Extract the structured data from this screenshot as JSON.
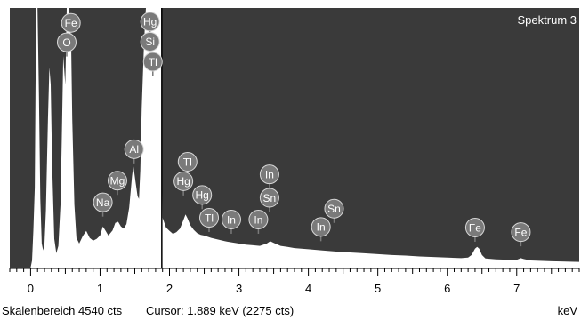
{
  "chart_data": {
    "type": "area",
    "title": "Spektrum 3",
    "xlabel": "keV",
    "xlim": [
      -0.3,
      7.9
    ],
    "ylim": [
      0,
      4540
    ],
    "x_ticks": [
      0,
      1,
      2,
      3,
      4,
      5,
      6,
      7
    ],
    "cursor_kev": 1.889,
    "spectrum": [
      [
        -0.3,
        0
      ],
      [
        0.0,
        0
      ],
      [
        0.02,
        120
      ],
      [
        0.04,
        650
      ],
      [
        0.06,
        1400
      ],
      [
        0.07,
        3100
      ],
      [
        0.08,
        4540
      ],
      [
        0.1,
        4540
      ],
      [
        0.12,
        3000
      ],
      [
        0.14,
        1200
      ],
      [
        0.16,
        420
      ],
      [
        0.18,
        300
      ],
      [
        0.2,
        420
      ],
      [
        0.22,
        1000
      ],
      [
        0.25,
        2600
      ],
      [
        0.27,
        3500
      ],
      [
        0.29,
        3200
      ],
      [
        0.31,
        1800
      ],
      [
        0.34,
        500
      ],
      [
        0.37,
        250
      ],
      [
        0.4,
        380
      ],
      [
        0.43,
        1100
      ],
      [
        0.45,
        2300
      ],
      [
        0.47,
        3700
      ],
      [
        0.5,
        3200
      ],
      [
        0.52,
        4540
      ],
      [
        0.55,
        4540
      ],
      [
        0.58,
        4200
      ],
      [
        0.6,
        2600
      ],
      [
        0.63,
        1100
      ],
      [
        0.66,
        520
      ],
      [
        0.7,
        420
      ],
      [
        0.75,
        550
      ],
      [
        0.8,
        640
      ],
      [
        0.85,
        520
      ],
      [
        0.9,
        470
      ],
      [
        0.95,
        500
      ],
      [
        1.0,
        560
      ],
      [
        1.04,
        720
      ],
      [
        1.08,
        640
      ],
      [
        1.12,
        560
      ],
      [
        1.18,
        650
      ],
      [
        1.22,
        780
      ],
      [
        1.26,
        800
      ],
      [
        1.3,
        720
      ],
      [
        1.34,
        680
      ],
      [
        1.38,
        760
      ],
      [
        1.42,
        1050
      ],
      [
        1.46,
        1600
      ],
      [
        1.48,
        1780
      ],
      [
        1.51,
        1500
      ],
      [
        1.54,
        1250
      ],
      [
        1.56,
        1200
      ],
      [
        1.58,
        1700
      ],
      [
        1.6,
        2800
      ],
      [
        1.63,
        3800
      ],
      [
        1.65,
        4350
      ],
      [
        1.66,
        4540
      ],
      [
        1.85,
        4540
      ],
      [
        1.88,
        4540
      ],
      [
        1.9,
        870
      ],
      [
        1.95,
        700
      ],
      [
        2.0,
        640
      ],
      [
        2.05,
        590
      ],
      [
        2.1,
        620
      ],
      [
        2.15,
        680
      ],
      [
        2.2,
        830
      ],
      [
        2.23,
        930
      ],
      [
        2.26,
        860
      ],
      [
        2.3,
        740
      ],
      [
        2.35,
        660
      ],
      [
        2.4,
        600
      ],
      [
        2.45,
        570
      ],
      [
        2.5,
        560
      ],
      [
        2.6,
        520
      ],
      [
        2.7,
        490
      ],
      [
        2.8,
        460
      ],
      [
        2.9,
        440
      ],
      [
        3.0,
        420
      ],
      [
        3.1,
        400
      ],
      [
        3.2,
        390
      ],
      [
        3.3,
        380
      ],
      [
        3.4,
        420
      ],
      [
        3.45,
        460
      ],
      [
        3.5,
        430
      ],
      [
        3.6,
        380
      ],
      [
        3.7,
        360
      ],
      [
        3.8,
        340
      ],
      [
        3.9,
        330
      ],
      [
        4.0,
        320
      ],
      [
        4.2,
        300
      ],
      [
        4.4,
        280
      ],
      [
        4.6,
        265
      ],
      [
        4.8,
        250
      ],
      [
        5.0,
        235
      ],
      [
        5.2,
        220
      ],
      [
        5.4,
        210
      ],
      [
        5.6,
        195
      ],
      [
        5.8,
        185
      ],
      [
        6.0,
        175
      ],
      [
        6.2,
        165
      ],
      [
        6.3,
        175
      ],
      [
        6.35,
        220
      ],
      [
        6.4,
        330
      ],
      [
        6.43,
        360
      ],
      [
        6.46,
        330
      ],
      [
        6.5,
        220
      ],
      [
        6.55,
        160
      ],
      [
        6.7,
        145
      ],
      [
        6.9,
        135
      ],
      [
        7.0,
        135
      ],
      [
        7.06,
        165
      ],
      [
        7.1,
        150
      ],
      [
        7.2,
        125
      ],
      [
        7.5,
        110
      ],
      [
        7.9,
        100
      ]
    ],
    "annotations": [
      {
        "label": "Fe",
        "x": 0.58,
        "y": 4280
      },
      {
        "label": "O",
        "x": 0.52,
        "y": 3940
      },
      {
        "label": "Hg",
        "x": 1.72,
        "y": 4300
      },
      {
        "label": "Si",
        "x": 1.72,
        "y": 3950
      },
      {
        "label": "Tl",
        "x": 1.76,
        "y": 3600
      },
      {
        "label": "Al",
        "x": 1.49,
        "y": 2070
      },
      {
        "label": "Mg",
        "x": 1.25,
        "y": 1520
      },
      {
        "label": "Na",
        "x": 1.04,
        "y": 1140
      },
      {
        "label": "Tl",
        "x": 2.26,
        "y": 1850
      },
      {
        "label": "Hg",
        "x": 2.2,
        "y": 1510
      },
      {
        "label": "Hg",
        "x": 2.47,
        "y": 1270
      },
      {
        "label": "In",
        "x": 3.44,
        "y": 1630
      },
      {
        "label": "Sn",
        "x": 3.44,
        "y": 1220
      },
      {
        "label": "Sn",
        "x": 4.37,
        "y": 1030
      },
      {
        "label": "Tl",
        "x": 2.57,
        "y": 870
      },
      {
        "label": "In",
        "x": 2.89,
        "y": 840
      },
      {
        "label": "In",
        "x": 3.28,
        "y": 840
      },
      {
        "label": "In",
        "x": 4.18,
        "y": 710
      },
      {
        "label": "Fe",
        "x": 6.4,
        "y": 700
      },
      {
        "label": "Fe",
        "x": 7.06,
        "y": 620
      }
    ]
  },
  "colors": {
    "plot_background": "#3a3a3a",
    "spectrum_fill": "#ffffff",
    "badge_fill": "#7a7a7a",
    "badge_stroke": "#d8d8d8"
  },
  "status": {
    "scale": "Skalenbereich 4540 cts",
    "cursor": "Cursor: 1.889 keV (2275 cts)",
    "unit": "keV"
  }
}
